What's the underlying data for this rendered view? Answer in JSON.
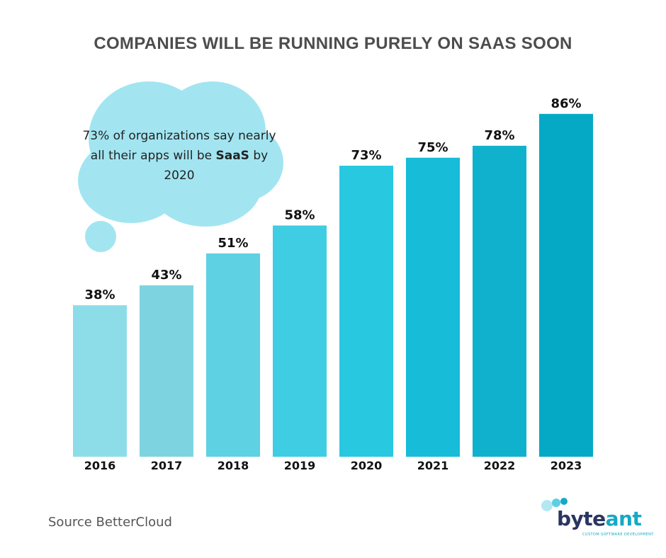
{
  "chart_data": {
    "type": "bar",
    "title": "COMPANIES WILL BE RUNNING PURELY ON SAAS SOON",
    "categories": [
      "2016",
      "2017",
      "2018",
      "2019",
      "2020",
      "2021",
      "2022",
      "2023"
    ],
    "values": [
      38,
      43,
      51,
      58,
      73,
      75,
      78,
      86
    ],
    "value_labels": [
      "38%",
      "43%",
      "51%",
      "58%",
      "73%",
      "75%",
      "78%",
      "86%"
    ],
    "bar_colors": [
      "#8ddde9",
      "#7dd4e0",
      "#5ed1e3",
      "#3fcde3",
      "#28c8e0",
      "#16bcd8",
      "#10b1cc",
      "#06a9c5"
    ],
    "ylim": [
      0,
      100
    ],
    "grid": false,
    "annotation": {
      "text_before": "73% of organizations say nearly all their apps will be ",
      "bold": "SaaS",
      "text_after": " by 2020",
      "bubble_color": "#a2e5f1"
    }
  },
  "source": "Source BetterCloud",
  "logo": {
    "brand_part1": "byte",
    "brand_part2": "ant",
    "tagline": "CUSTOM SOFTWARE DEVELOPMENT",
    "dot_colors": [
      "#b3e8f2",
      "#5fcde2",
      "#16a8c7"
    ]
  }
}
